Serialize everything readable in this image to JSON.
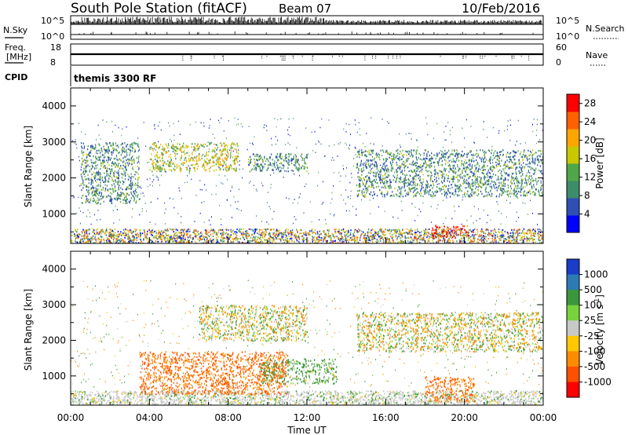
{
  "header": {
    "station": "South Pole Station (fitACF)",
    "beam": "Beam 07",
    "date": "10/Feb/2016"
  },
  "param_panels": {
    "nsky_label": "N.Sky",
    "nsearch_label": "N.Search",
    "freq_label_1": "Freq.",
    "freq_label_2": "[MHz]",
    "nave_label": "Nave",
    "cpid_label": "CPID",
    "cpid_value": "themis 3300 RF",
    "nsky_ticks": [
      "10^5",
      "10^0"
    ],
    "nsearch_ticks": [
      "10^5",
      "10^0"
    ],
    "freq_ticks": [
      "18",
      "8"
    ],
    "nave_ticks": [
      "60",
      "0"
    ]
  },
  "colors": {
    "power_scale": [
      "#0000ff",
      "#2f4fb4",
      "#3d8c6a",
      "#52a64a",
      "#c8c800",
      "#ffa500",
      "#ff6000",
      "#ff0000"
    ],
    "velocity_scale": [
      "#1a3cc8",
      "#2d7ab4",
      "#3c963c",
      "#78d23c",
      "#c8c8c8",
      "#ffc800",
      "#ff8c00",
      "#ff5000",
      "#ff0000"
    ],
    "ground_scatter": "#b4b4b4"
  },
  "chart_data": [
    {
      "type": "heatmap",
      "name": "power",
      "ylabel": "Slant Range [km]",
      "yticks": [
        "1000",
        "2000",
        "3000",
        "4000"
      ],
      "ylim": [
        180,
        4500
      ],
      "colorbar_label": "Power [dB]",
      "colorbar_ticks": [
        "4",
        "8",
        "12",
        "16",
        "20",
        "24",
        "28"
      ],
      "colorbar_range": [
        0,
        30
      ],
      "features": [
        {
          "t": [
            0.5,
            3.5
          ],
          "range": [
            1300,
            3000
          ],
          "power_db": 10
        },
        {
          "t": [
            4.0,
            8.5
          ],
          "range": [
            2200,
            3000
          ],
          "power_db": 16
        },
        {
          "t": [
            9.0,
            12.0
          ],
          "range": [
            2200,
            2700
          ],
          "power_db": 10
        },
        {
          "t": [
            14.5,
            24.0
          ],
          "range": [
            1500,
            2800
          ],
          "power_db": 10
        },
        {
          "t": [
            18.3,
            20.2
          ],
          "range": [
            350,
            700
          ],
          "power_db": 28
        }
      ]
    },
    {
      "type": "heatmap",
      "name": "velocity",
      "ylabel": "Slant Range [km]",
      "yticks": [
        "1000",
        "2000",
        "3000",
        "4000"
      ],
      "ylim": [
        180,
        4500
      ],
      "xlabel": "Time UT",
      "xticks": [
        "00:00",
        "04:00",
        "08:00",
        "12:00",
        "16:00",
        "20:00",
        "00:00"
      ],
      "xlim": [
        0,
        24
      ],
      "colorbar_label": "Velocity",
      "colorbar_ticks": [
        "1000",
        "500",
        "100",
        "25",
        "-25",
        "-100",
        "-500",
        "-1000"
      ],
      "features": [
        {
          "t": [
            3.5,
            11.0
          ],
          "range": [
            500,
            1700
          ],
          "velocity": -300
        },
        {
          "t": [
            6.5,
            12.0
          ],
          "range": [
            2000,
            3000
          ],
          "velocity": 0
        },
        {
          "t": [
            9.5,
            13.5
          ],
          "range": [
            800,
            1500
          ],
          "velocity": 100
        },
        {
          "t": [
            14.5,
            24.0
          ],
          "range": [
            1700,
            2800
          ],
          "velocity": 0
        },
        {
          "t": [
            18.0,
            20.5
          ],
          "range": [
            300,
            1000
          ],
          "velocity": -300
        }
      ]
    }
  ]
}
